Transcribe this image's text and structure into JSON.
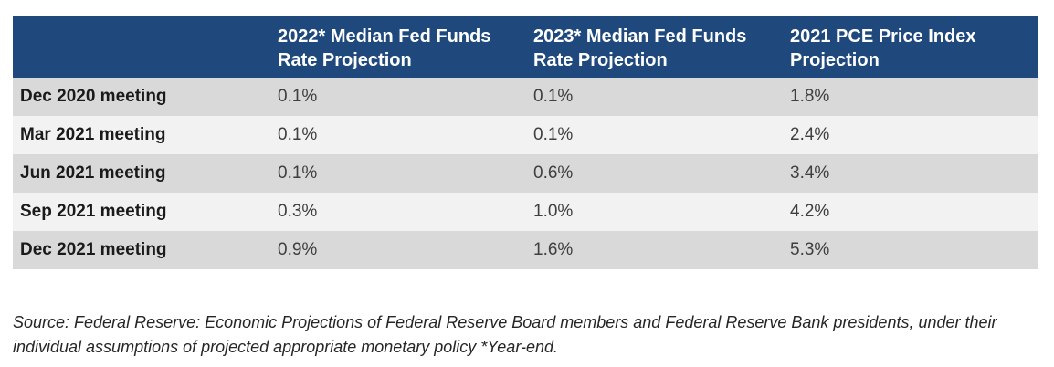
{
  "table": {
    "headers": [
      "",
      "2022* Median Fed Funds Rate Projection",
      "2023* Median Fed Funds Rate Projection",
      "2021 PCE Price Index Projection"
    ],
    "rows": [
      [
        "Dec 2020 meeting",
        "0.1%",
        "0.1%",
        "1.8%"
      ],
      [
        "Mar 2021 meeting",
        "0.1%",
        "0.1%",
        "2.4%"
      ],
      [
        "Jun 2021 meeting",
        "0.1%",
        "0.6%",
        "3.4%"
      ],
      [
        "Sep 2021 meeting",
        "0.3%",
        "1.0%",
        "4.2%"
      ],
      [
        "Dec 2021 meeting",
        "0.9%",
        "1.6%",
        "5.3%"
      ]
    ]
  },
  "source": "Source: Federal Reserve: Economic Projections of Federal Reserve Board members and Federal Reserve Bank presidents, under their individual assumptions of projected appropriate monetary policy *Year-end.",
  "colors": {
    "header_bg": "#1f497d",
    "row_dark": "#d9d9d9",
    "row_light": "#f2f2f2"
  }
}
